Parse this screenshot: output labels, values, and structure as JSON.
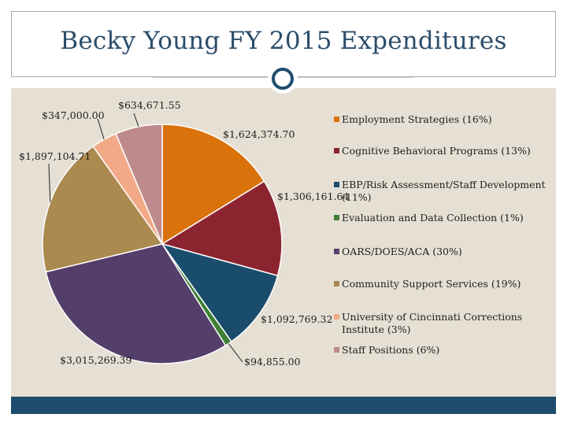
{
  "slide": {
    "title": "Becky Young FY 2015 Expenditures"
  },
  "colors": {
    "content_bg": "#e6dfd4",
    "accent": "#1d4c6c",
    "title_color": "#2d4d6a"
  },
  "chart_data": {
    "type": "pie",
    "title": "Becky Young FY 2015 Expenditures",
    "start": "12 o'clock",
    "direction": "clockwise",
    "slices": [
      {
        "name": "Employment Strategies (16%)",
        "value": 1624374.7,
        "label": "$1,624,374.70",
        "color": "#d9720b"
      },
      {
        "name": "Cognitive Behavioral Programs (13%)",
        "value": 1306161.64,
        "label": "$1,306,161.64",
        "color": "#8c2430"
      },
      {
        "name": "EBP/Risk Assessment/Staff Development (11%)",
        "value": 1092769.32,
        "label": "$1,092,769.32",
        "color": "#1a4d6c"
      },
      {
        "name": "Evaluation and Data Collection (1%)",
        "value": 94855.0,
        "label": "$94,855.00",
        "color": "#3f7f36"
      },
      {
        "name": "OARS/DOES/ACA (30%)",
        "value": 3015269.39,
        "label": "$3,015,269.39",
        "color": "#543e6a"
      },
      {
        "name": "Community Support Services (19%)",
        "value": 1897104.71,
        "label": "$1,897,104.71",
        "color": "#ab8a50"
      },
      {
        "name": "University of Cincinnati Corrections Institute (3%)",
        "value": 347000.0,
        "label": "$347,000.00",
        "color": "#f2a988"
      },
      {
        "name": "Staff Positions (6%)",
        "value": 634671.55,
        "label": "$634,671.55",
        "color": "#bf8a8b"
      }
    ],
    "legend_position": "right"
  },
  "legend": {
    "items": [
      {
        "label": "Employment Strategies (16%)",
        "color": "#d9720b"
      },
      {
        "label": "Cognitive Behavioral Programs (13%)",
        "color": "#8c2430"
      },
      {
        "label": "EBP/Risk Assessment/Staff Development (11%)",
        "color": "#1a4d6c"
      },
      {
        "label": "Evaluation and Data Collection (1%)",
        "color": "#3f7f36"
      },
      {
        "label": "OARS/DOES/ACA (30%)",
        "color": "#543e6a"
      },
      {
        "label": "Community Support Services (19%)",
        "color": "#ab8a50"
      },
      {
        "label": "University of Cincinnati Corrections Institute (3%)",
        "color": "#f2a988"
      },
      {
        "label": "Staff Positions (6%)",
        "color": "#bf8a8b"
      }
    ]
  }
}
